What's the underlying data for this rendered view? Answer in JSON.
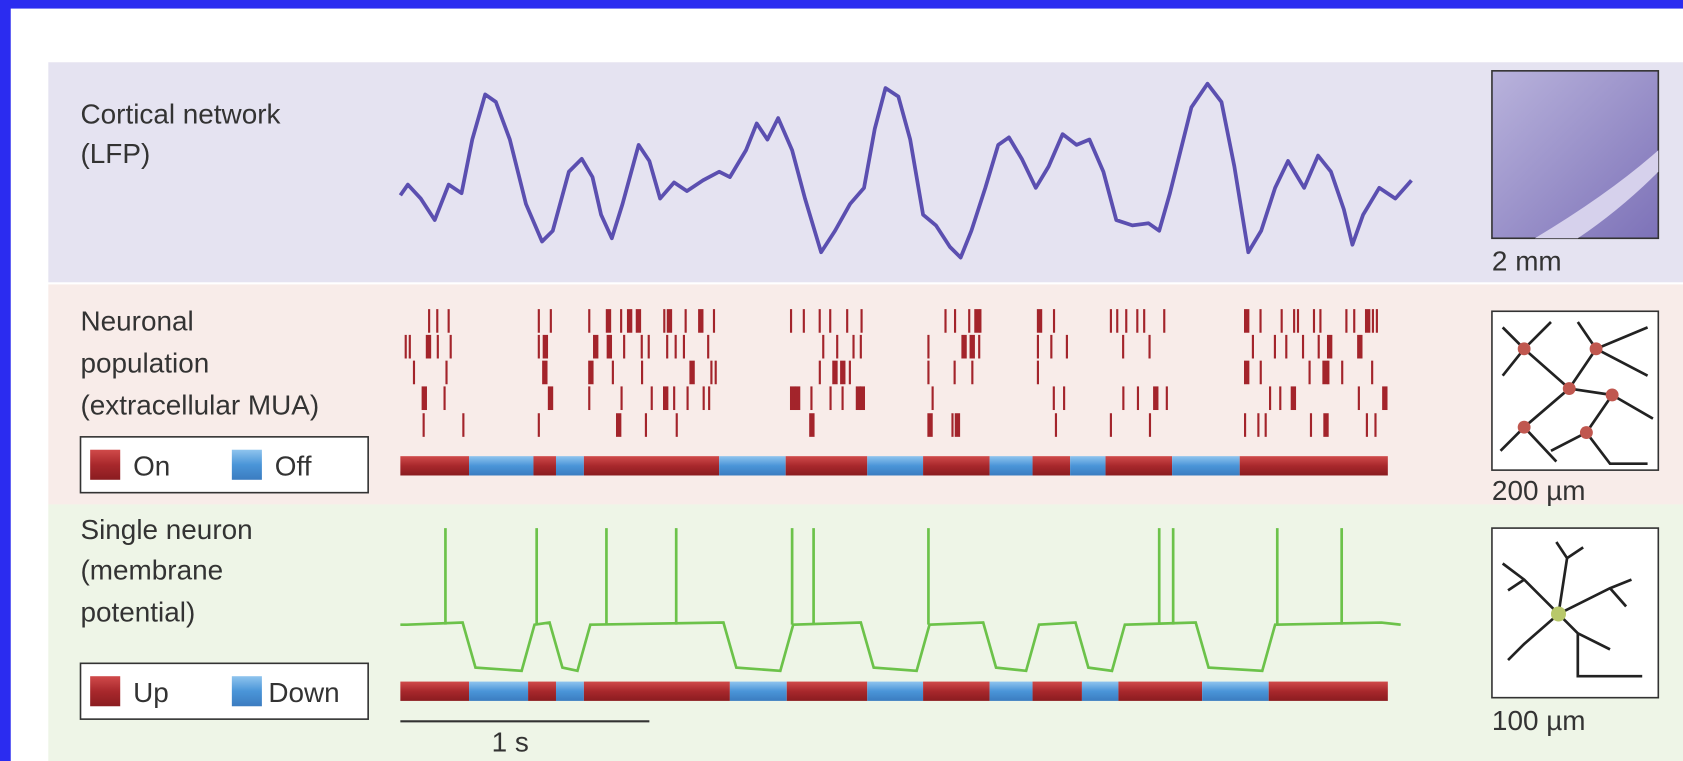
{
  "panels": [
    {
      "label_lines": [
        "Cortical network",
        "(LFP)"
      ],
      "scale_bar": "2 mm"
    },
    {
      "label_lines": [
        "Neuronal",
        "population",
        "(extracellular MUA)"
      ],
      "legend": [
        "On",
        "Off"
      ],
      "scale_bar": "200 µm"
    },
    {
      "label_lines": [
        "Single neuron",
        "(membrane",
        "potential)"
      ],
      "legend": [
        "Up",
        "Down"
      ],
      "scale_bar": "100 µm"
    }
  ],
  "time_scale": "1 s"
}
